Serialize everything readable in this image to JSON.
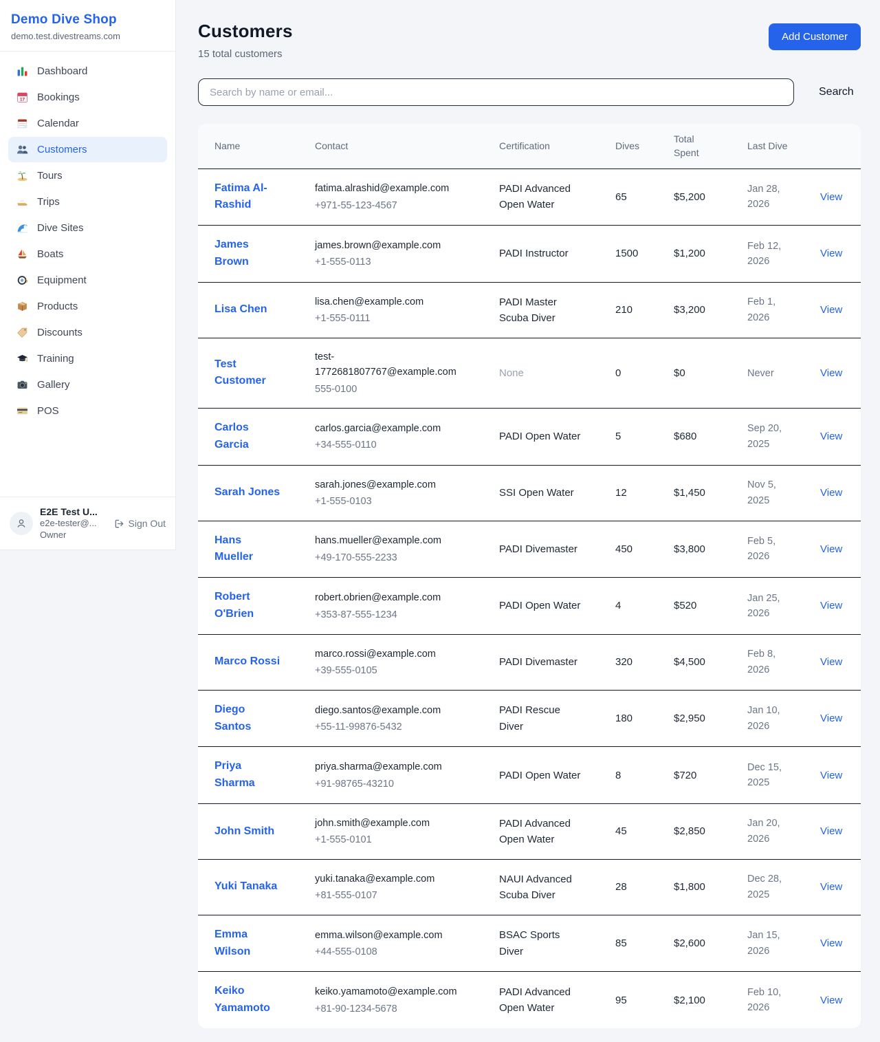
{
  "brand": {
    "name": "Demo Dive Shop",
    "domain": "demo.test.divestreams.com"
  },
  "nav": [
    {
      "icon": "bar-chart-icon",
      "label": "Dashboard",
      "active": false
    },
    {
      "icon": "tearoff-calendar-icon",
      "label": "Bookings",
      "active": false
    },
    {
      "icon": "spiral-calendar-icon",
      "label": "Calendar",
      "active": false
    },
    {
      "icon": "people-icon",
      "label": "Customers",
      "active": true
    },
    {
      "icon": "island-icon",
      "label": "Tours",
      "active": false
    },
    {
      "icon": "speedboat-icon",
      "label": "Trips",
      "active": false
    },
    {
      "icon": "wave-icon",
      "label": "Dive Sites",
      "active": false
    },
    {
      "icon": "sailboat-icon",
      "label": "Boats",
      "active": false
    },
    {
      "icon": "diving-mask-icon",
      "label": "Equipment",
      "active": false
    },
    {
      "icon": "package-icon",
      "label": "Products",
      "active": false
    },
    {
      "icon": "tag-icon",
      "label": "Discounts",
      "active": false
    },
    {
      "icon": "grad-cap-icon",
      "label": "Training",
      "active": false
    },
    {
      "icon": "camera-icon",
      "label": "Gallery",
      "active": false
    },
    {
      "icon": "credit-card-icon",
      "label": "POS",
      "active": false
    }
  ],
  "user": {
    "name": "E2E Test U...",
    "email": "e2e-tester@...",
    "role": "Owner",
    "sign_out_label": "Sign Out"
  },
  "page": {
    "title": "Customers",
    "subtitle": "15 total customers",
    "add_button_label": "Add Customer"
  },
  "search": {
    "placeholder": "Search by name or email...",
    "button_label": "Search"
  },
  "table": {
    "headers": {
      "name": "Name",
      "contact": "Contact",
      "certification": "Certification",
      "dives": "Dives",
      "total_spent": "Total Spent",
      "last_dive": "Last Dive"
    },
    "view_label": "View",
    "rows": [
      {
        "name": "Fatima Al-Rashid",
        "email": "fatima.alrashid@example.com",
        "phone": "+971-55-123-4567",
        "certification": "PADI Advanced Open Water",
        "dives": "65",
        "total_spent": "$5,200",
        "last_dive": "Jan 28, 2026"
      },
      {
        "name": "James Brown",
        "email": "james.brown@example.com",
        "phone": "+1-555-0113",
        "certification": "PADI Instructor",
        "dives": "1500",
        "total_spent": "$1,200",
        "last_dive": "Feb 12, 2026"
      },
      {
        "name": "Lisa Chen",
        "email": "lisa.chen@example.com",
        "phone": "+1-555-0111",
        "certification": "PADI Master Scuba Diver",
        "dives": "210",
        "total_spent": "$3,200",
        "last_dive": "Feb 1, 2026"
      },
      {
        "name": "Test Customer",
        "email": "test-1772681807767@example.com",
        "phone": "555-0100",
        "certification": "None",
        "dives": "0",
        "total_spent": "$0",
        "last_dive": "Never"
      },
      {
        "name": "Carlos Garcia",
        "email": "carlos.garcia@example.com",
        "phone": "+34-555-0110",
        "certification": "PADI Open Water",
        "dives": "5",
        "total_spent": "$680",
        "last_dive": "Sep 20, 2025"
      },
      {
        "name": "Sarah Jones",
        "email": "sarah.jones@example.com",
        "phone": "+1-555-0103",
        "certification": "SSI Open Water",
        "dives": "12",
        "total_spent": "$1,450",
        "last_dive": "Nov 5, 2025"
      },
      {
        "name": "Hans Mueller",
        "email": "hans.mueller@example.com",
        "phone": "+49-170-555-2233",
        "certification": "PADI Divemaster",
        "dives": "450",
        "total_spent": "$3,800",
        "last_dive": "Feb 5, 2026"
      },
      {
        "name": "Robert O'Brien",
        "email": "robert.obrien@example.com",
        "phone": "+353-87-555-1234",
        "certification": "PADI Open Water",
        "dives": "4",
        "total_spent": "$520",
        "last_dive": "Jan 25, 2026"
      },
      {
        "name": "Marco Rossi",
        "email": "marco.rossi@example.com",
        "phone": "+39-555-0105",
        "certification": "PADI Divemaster",
        "dives": "320",
        "total_spent": "$4,500",
        "last_dive": "Feb 8, 2026"
      },
      {
        "name": "Diego Santos",
        "email": "diego.santos@example.com",
        "phone": "+55-11-99876-5432",
        "certification": "PADI Rescue Diver",
        "dives": "180",
        "total_spent": "$2,950",
        "last_dive": "Jan 10, 2026"
      },
      {
        "name": "Priya Sharma",
        "email": "priya.sharma@example.com",
        "phone": "+91-98765-43210",
        "certification": "PADI Open Water",
        "dives": "8",
        "total_spent": "$720",
        "last_dive": "Dec 15, 2025"
      },
      {
        "name": "John Smith",
        "email": "john.smith@example.com",
        "phone": "+1-555-0101",
        "certification": "PADI Advanced Open Water",
        "dives": "45",
        "total_spent": "$2,850",
        "last_dive": "Jan 20, 2026"
      },
      {
        "name": "Yuki Tanaka",
        "email": "yuki.tanaka@example.com",
        "phone": "+81-555-0107",
        "certification": "NAUI Advanced Scuba Diver",
        "dives": "28",
        "total_spent": "$1,800",
        "last_dive": "Dec 28, 2025"
      },
      {
        "name": "Emma Wilson",
        "email": "emma.wilson@example.com",
        "phone": "+44-555-0108",
        "certification": "BSAC Sports Diver",
        "dives": "85",
        "total_spent": "$2,600",
        "last_dive": "Jan 15, 2026"
      },
      {
        "name": "Keiko Yamamoto",
        "email": "keiko.yamamoto@example.com",
        "phone": "+81-90-1234-5678",
        "certification": "PADI Advanced Open Water",
        "dives": "95",
        "total_spent": "$2,100",
        "last_dive": "Feb 10, 2026"
      }
    ]
  },
  "colors": {
    "accent": "#2563eb",
    "active_nav_bg": "#e9f1fd",
    "page_bg": "#f3f5f9",
    "row_border": "#101826",
    "muted_text": "#98a1ae"
  }
}
